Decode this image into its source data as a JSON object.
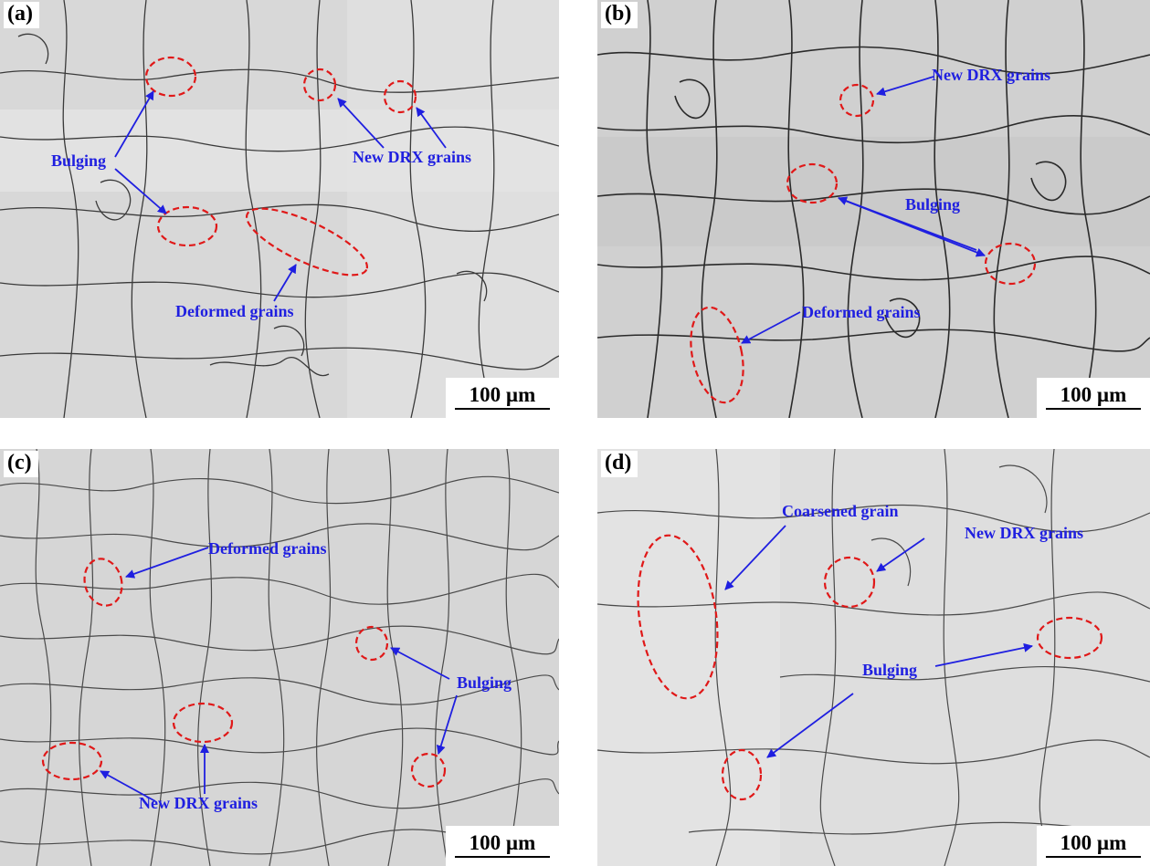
{
  "panels": [
    {
      "tag": "(a)",
      "scale": "100 µm",
      "labels": {
        "bulging": "Bulging",
        "new_drx": "New DRX grains",
        "deformed": "Deformed grains"
      }
    },
    {
      "tag": "(b)",
      "scale": "100 µm",
      "labels": {
        "new_drx": "New DRX grains",
        "bulging": "Bulging",
        "deformed": "Deformed grains"
      }
    },
    {
      "tag": "(c)",
      "scale": "100 µm",
      "labels": {
        "deformed": "Deformed grains",
        "bulging": "Bulging",
        "new_drx": "New DRX grains"
      }
    },
    {
      "tag": "(d)",
      "scale": "100 µm",
      "labels": {
        "coarsened": "Coarsened grain",
        "new_drx": "New DRX grains",
        "bulging": "Bulging"
      }
    }
  ],
  "colors": {
    "annotation": "#1f1fe0",
    "ellipse": "#e01818"
  }
}
